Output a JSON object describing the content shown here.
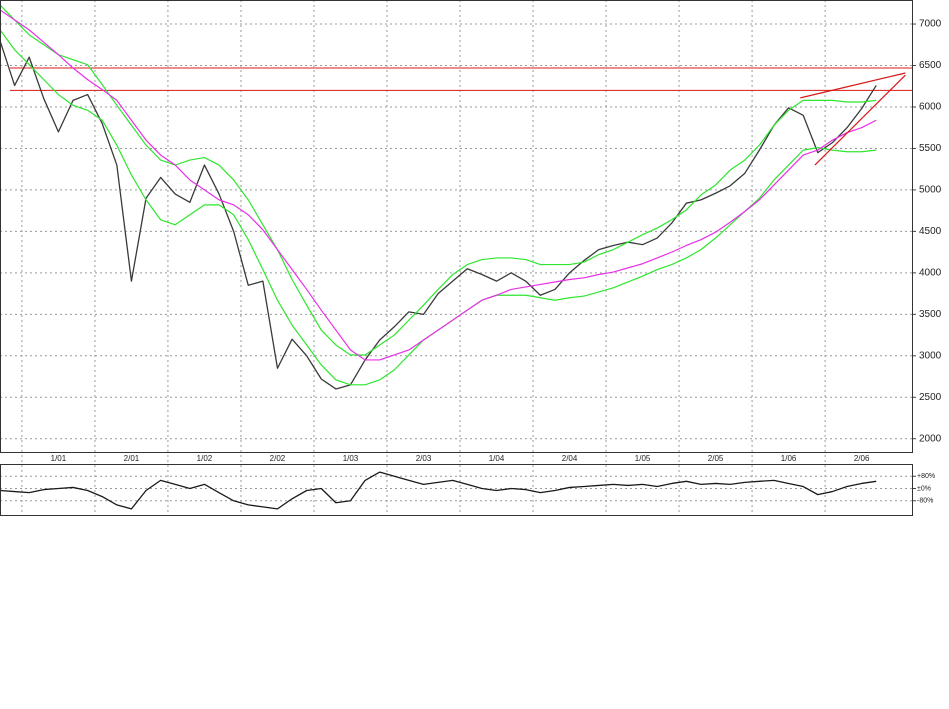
{
  "chart_data": [
    {
      "type": "line",
      "x": [
        -0.3,
        -0.1,
        0.1,
        0.3,
        0.5,
        0.7,
        0.9,
        1.1,
        1.3,
        1.5,
        1.7,
        1.9,
        2.1,
        2.3,
        2.5,
        2.7,
        2.9,
        3.1,
        3.3,
        3.5,
        3.7,
        3.9,
        4.1,
        4.3,
        4.5,
        4.7,
        4.9,
        5.1,
        5.3,
        5.5,
        5.7,
        5.9,
        6.1,
        6.3,
        6.5,
        6.7,
        6.9,
        7.1,
        7.3,
        7.5,
        7.7,
        7.9,
        8.1,
        8.3,
        8.5,
        8.7,
        8.9,
        9.1,
        9.3,
        9.5,
        9.7,
        9.9,
        10.1,
        10.3,
        10.5,
        10.7,
        10.9,
        11.1,
        11.3,
        11.5,
        11.7
      ],
      "series": [
        {
          "color": "#3a3a3a",
          "values": [
            6800,
            6260,
            6600,
            6100,
            5700,
            6080,
            6150,
            5800,
            5300,
            3900,
            4900,
            5150,
            4950,
            4850,
            5300,
            4950,
            4500,
            3850,
            3900,
            2850,
            3200,
            3000,
            2720,
            2600,
            2650,
            2950,
            3190,
            3350,
            3530,
            3500,
            3750,
            3900,
            4050,
            3980,
            3900,
            4000,
            3900,
            3730,
            3800,
            4000,
            4150,
            4280,
            4330,
            4370,
            4340,
            4420,
            4600,
            4840,
            4880,
            4960,
            5050,
            5200,
            5480,
            5780,
            5990,
            5900,
            5450,
            5570,
            5750,
            5980,
            6260
          ]
        },
        {
          "color": "#2ee62e",
          "values": [
            7230,
            7050,
            6870,
            6750,
            6630,
            6570,
            6510,
            6270,
            6020,
            5780,
            5540,
            5360,
            5300,
            5360,
            5390,
            5300,
            5120,
            4880,
            4580,
            4280,
            3920,
            3610,
            3310,
            3130,
            3010,
            3010,
            3130,
            3250,
            3430,
            3610,
            3800,
            3980,
            4100,
            4160,
            4180,
            4180,
            4160,
            4100,
            4100,
            4100,
            4130,
            4220,
            4280,
            4370,
            4460,
            4540,
            4640,
            4760,
            4940,
            5060,
            5240,
            5360,
            5540,
            5780,
            5960,
            6080,
            6080,
            6080,
            6060,
            6060,
            6080
          ]
        },
        {
          "color": "#2ee62e",
          "values": [
            6930,
            6690,
            6510,
            6330,
            6150,
            6020,
            5960,
            5840,
            5540,
            5180,
            4880,
            4640,
            4580,
            4700,
            4820,
            4820,
            4700,
            4400,
            4040,
            3670,
            3370,
            3130,
            2890,
            2710,
            2650,
            2650,
            2710,
            2830,
            3010,
            3190,
            3310,
            3430,
            3550,
            3670,
            3730,
            3730,
            3730,
            3700,
            3670,
            3700,
            3720,
            3770,
            3820,
            3890,
            3960,
            4040,
            4100,
            4180,
            4280,
            4420,
            4580,
            4740,
            4900,
            5120,
            5300,
            5480,
            5510,
            5480,
            5460,
            5460,
            5480
          ]
        },
        {
          "color": "#e830e8",
          "values": [
            7170,
            7050,
            6930,
            6780,
            6630,
            6470,
            6330,
            6210,
            6080,
            5840,
            5600,
            5420,
            5300,
            5120,
            5000,
            4880,
            4820,
            4700,
            4520,
            4280,
            4040,
            3800,
            3550,
            3310,
            3070,
            2950,
            2950,
            3010,
            3070,
            3190,
            3310,
            3430,
            3550,
            3670,
            3730,
            3800,
            3830,
            3860,
            3890,
            3920,
            3940,
            3980,
            4010,
            4060,
            4110,
            4180,
            4250,
            4330,
            4400,
            4490,
            4610,
            4740,
            4880,
            5060,
            5240,
            5420,
            5480,
            5600,
            5690,
            5750,
            5840
          ]
        }
      ],
      "reference_lines": [
        6470,
        6200
      ],
      "trendlines": [
        {
          "x": [
            10.66,
            12.1
          ],
          "values": [
            6110,
            6410
          ]
        },
        {
          "x": [
            10.86,
            12.1
          ],
          "values": [
            5300,
            6385
          ]
        }
      ],
      "reference_color": "#d81818",
      "xlim": [
        -0.3,
        12.19
      ],
      "xticks": [
        {
          "value": 0,
          "label": "1/01"
        },
        {
          "value": 1,
          "label": "2/01"
        },
        {
          "value": 2,
          "label": "1/02"
        },
        {
          "value": 3,
          "label": "2/02"
        },
        {
          "value": 4,
          "label": "1/03"
        },
        {
          "value": 5,
          "label": "2/03"
        },
        {
          "value": 6,
          "label": "1/04"
        },
        {
          "value": 7,
          "label": "2/04"
        },
        {
          "value": 8,
          "label": "1/05"
        },
        {
          "value": 9,
          "label": "2/05"
        },
        {
          "value": 10,
          "label": "1/06"
        },
        {
          "value": 11,
          "label": "2/06"
        }
      ],
      "ylim": [
        1840,
        7290
      ],
      "yticks": [
        2000,
        2500,
        3000,
        3500,
        4000,
        4500,
        5000,
        5500,
        6000,
        6500,
        7000
      ],
      "grid": true
    },
    {
      "type": "line",
      "x": [
        -0.3,
        -0.1,
        0.1,
        0.3,
        0.5,
        0.7,
        0.9,
        1.1,
        1.3,
        1.5,
        1.7,
        1.9,
        2.1,
        2.3,
        2.5,
        2.7,
        2.9,
        3.1,
        3.3,
        3.5,
        3.7,
        3.9,
        4.1,
        4.3,
        4.5,
        4.7,
        4.9,
        5.1,
        5.3,
        5.5,
        5.7,
        5.9,
        6.1,
        6.3,
        6.5,
        6.7,
        6.9,
        7.1,
        7.3,
        7.5,
        7.7,
        7.9,
        8.1,
        8.3,
        8.5,
        8.7,
        8.9,
        9.1,
        9.3,
        9.5,
        9.7,
        9.9,
        10.1,
        10.3,
        10.5,
        10.7,
        10.9,
        11.1,
        11.3,
        11.5,
        11.7
      ],
      "series": [
        {
          "color": "#1a1a1a",
          "values": [
            -13,
            -20,
            -27,
            -7,
            0,
            7,
            -13,
            -53,
            -107,
            -133,
            -13,
            53,
            27,
            0,
            27,
            -27,
            -80,
            -107,
            -120,
            -133,
            -67,
            -13,
            0,
            -93,
            -80,
            53,
            107,
            80,
            53,
            27,
            40,
            53,
            27,
            0,
            -13,
            0,
            -7,
            -27,
            -13,
            7,
            13,
            20,
            27,
            20,
            27,
            13,
            33,
            47,
            27,
            33,
            27,
            40,
            47,
            53,
            33,
            13,
            -40,
            -20,
            13,
            33,
            47
          ]
        }
      ],
      "xlim": [
        -0.3,
        12.19
      ],
      "ylim": [
        -173,
        160
      ],
      "yticks": [
        {
          "value": 80,
          "label": "+80%"
        },
        {
          "value": 0,
          "label": "±0%"
        },
        {
          "value": -80,
          "label": "-80%"
        }
      ],
      "grid": true
    }
  ]
}
